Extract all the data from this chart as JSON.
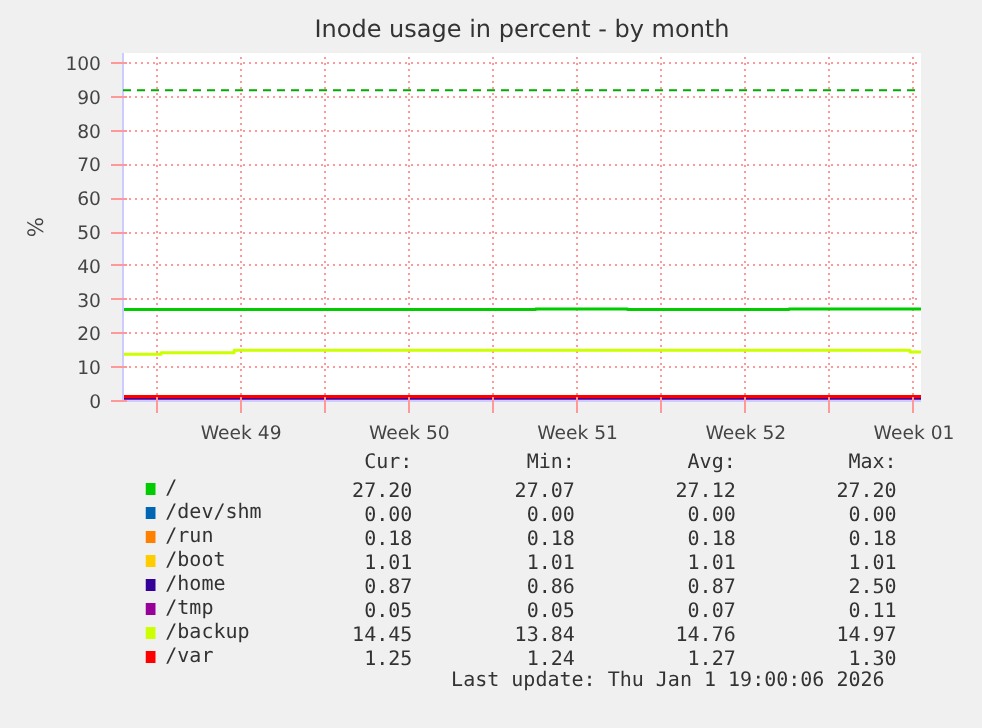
{
  "chart_data": {
    "type": "step",
    "title": "Inode usage in percent - by month",
    "ylabel": "%",
    "xlim": [
      "2025-11-29T14:00",
      "2026-01-01T19:00"
    ],
    "xticks": [
      {
        "value": "2025-12-01",
        "label": null
      },
      {
        "value": "2025-12-04T12:00",
        "label": "Week 49"
      },
      {
        "value": "2025-12-08",
        "label": null
      },
      {
        "value": "2025-12-11T12:00",
        "label": "Week 50"
      },
      {
        "value": "2025-12-15",
        "label": null
      },
      {
        "value": "2025-12-18T12:00",
        "label": "Week 51"
      },
      {
        "value": "2025-12-22",
        "label": null
      },
      {
        "value": "2025-12-25T12:00",
        "label": "Week 52"
      },
      {
        "value": "2025-12-29",
        "label": null
      },
      {
        "value": "2026-01-01T12:00",
        "label": "Week 01"
      }
    ],
    "ylim": [
      0,
      103
    ],
    "yticks": [
      0,
      10,
      20,
      30,
      40,
      50,
      60,
      70,
      80,
      90,
      100
    ],
    "grid": true,
    "legend": "bottom",
    "line_style": "solid",
    "marker": "none",
    "ref_lines": [
      {
        "axis": "y",
        "value": 92,
        "color": "#00aa00",
        "line_style": "dashed"
      }
    ],
    "series": [
      {
        "name": "/",
        "color": "#00cc00",
        "x": [
          "2025-11-29T14:00",
          "2025-12-16T18:00",
          "2025-12-20T14:00",
          "2025-12-27T07:00",
          "2026-01-01T19:00"
        ],
        "values": [
          27.1,
          27.2,
          27.1,
          27.2,
          27.2
        ]
      },
      {
        "name": "/dev/shm",
        "color": "#0066b3",
        "values": [
          null,
          null
        ]
      },
      {
        "name": "/run",
        "color": "#ff8000",
        "values": [
          null,
          null
        ]
      },
      {
        "name": "/boot",
        "color": "#ffcc00",
        "values": [
          null,
          null
        ]
      },
      {
        "name": "/home",
        "color": "#330099",
        "x": [
          "2025-11-29T14:00",
          "2026-01-01T19:00"
        ],
        "values": [
          0.9,
          0.9
        ]
      },
      {
        "name": "/tmp",
        "color": "#990099",
        "x": [
          "2025-11-29T14:00",
          "2026-01-01T19:00"
        ],
        "values": [
          0.1,
          0.1
        ]
      },
      {
        "name": "/backup",
        "color": "#ccff00",
        "x": [
          "2025-11-29T14:00",
          "2025-12-01T04:00",
          "2025-12-04T05:00",
          "2026-01-01T08:00",
          "2026-01-01T19:00"
        ],
        "values": [
          13.8,
          14.3,
          15,
          14.5,
          14.5
        ]
      },
      {
        "name": "/var",
        "color": "#ff0000",
        "x": [
          "2025-11-29T14:00",
          "2026-01-01T19:00"
        ],
        "values": [
          1.3,
          1.3
        ]
      }
    ],
    "annotations": [
      "Cur:",
      "Min:",
      "Avg:",
      "Max:",
      "27.20",
      "27.07",
      "27.12",
      "27.20",
      "0.00",
      "0.00",
      "0.00",
      "0.00",
      "0.18",
      "0.18",
      "0.18",
      "0.18",
      "1.01",
      "1.01",
      "1.01",
      "1.01",
      "0.87",
      "0.86",
      "0.87",
      "2.50",
      "0.05",
      "0.05",
      "0.07",
      "0.11",
      "14.45",
      "13.84",
      "14.76",
      "14.97",
      "1.25",
      "1.24",
      "1.27",
      "1.30",
      "Last update: Thu Jan  1 19:00:06 2026"
    ]
  }
}
